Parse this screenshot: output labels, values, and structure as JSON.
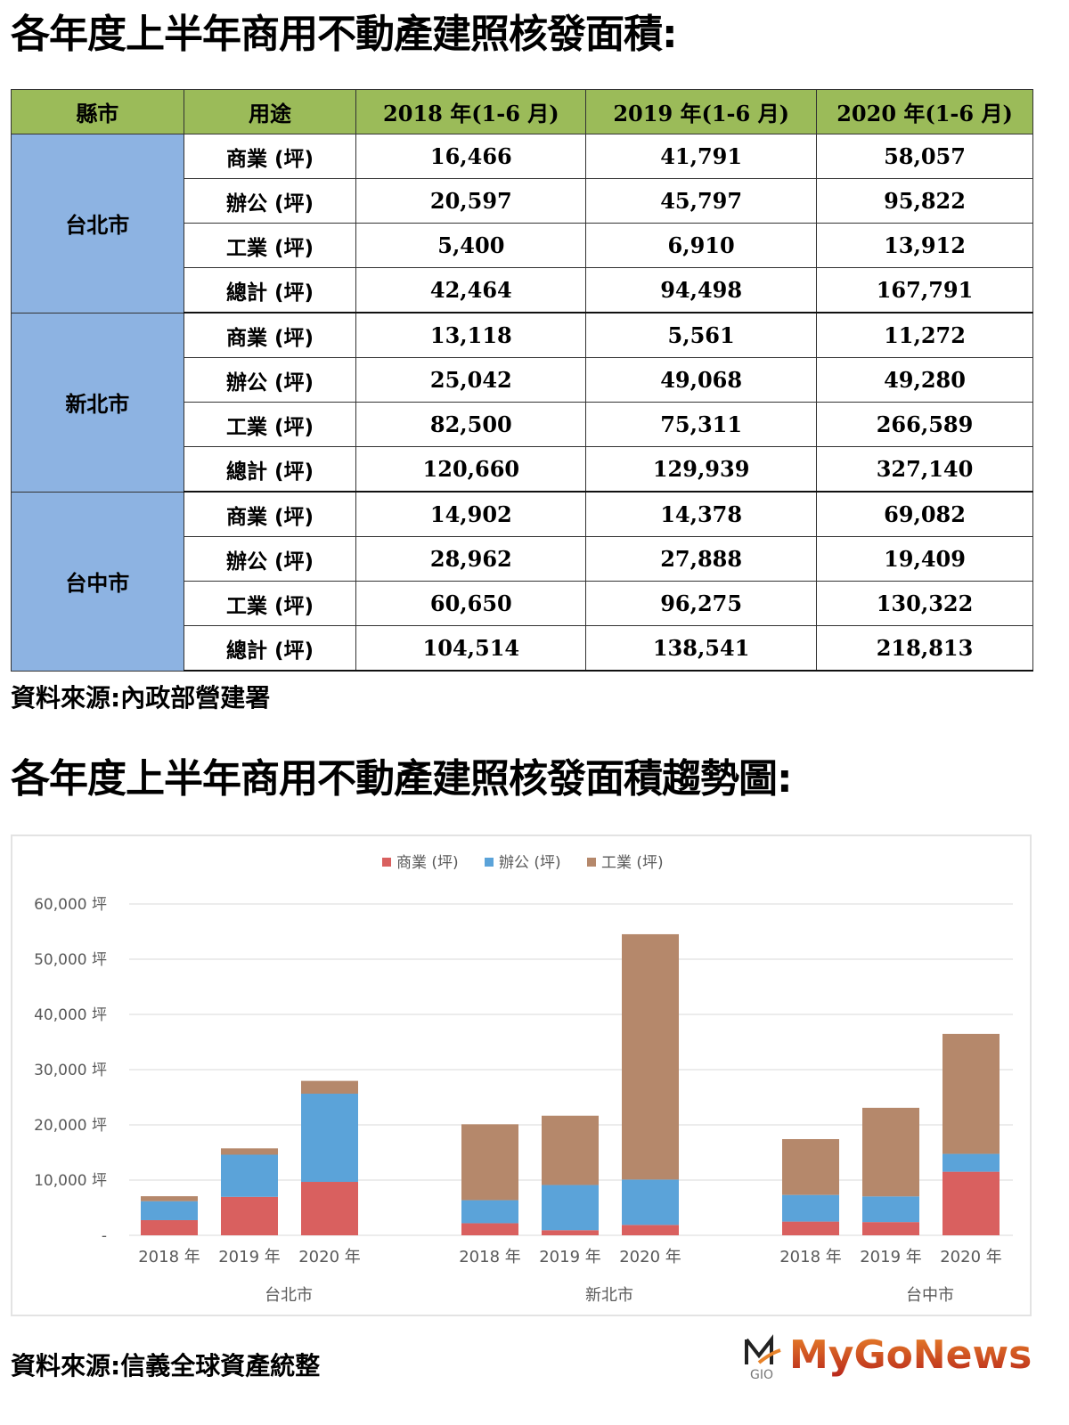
{
  "title": "各年度上半年商用不動產建照核發面積:",
  "table": {
    "headers": [
      "縣市",
      "用途",
      "2018 年(1-6 月)",
      "2019 年(1-6 月)",
      "2020 年(1-6 月)"
    ],
    "groups": [
      {
        "city": "台北市",
        "rows": [
          {
            "use": "商業 (坪)",
            "values": [
              "16,466",
              "41,791",
              "58,057"
            ]
          },
          {
            "use": "辦公 (坪)",
            "values": [
              "20,597",
              "45,797",
              "95,822"
            ]
          },
          {
            "use": "工業 (坪)",
            "values": [
              "5,400",
              "6,910",
              "13,912"
            ]
          },
          {
            "use": "總計 (坪)",
            "values": [
              "42,464",
              "94,498",
              "167,791"
            ]
          }
        ]
      },
      {
        "city": "新北市",
        "rows": [
          {
            "use": "商業 (坪)",
            "values": [
              "13,118",
              "5,561",
              "11,272"
            ]
          },
          {
            "use": "辦公 (坪)",
            "values": [
              "25,042",
              "49,068",
              "49,280"
            ]
          },
          {
            "use": "工業 (坪)",
            "values": [
              "82,500",
              "75,311",
              "266,589"
            ]
          },
          {
            "use": "總計 (坪)",
            "values": [
              "120,660",
              "129,939",
              "327,140"
            ]
          }
        ]
      },
      {
        "city": "台中市",
        "rows": [
          {
            "use": "商業 (坪)",
            "values": [
              "14,902",
              "14,378",
              "69,082"
            ]
          },
          {
            "use": "辦公 (坪)",
            "values": [
              "28,962",
              "27,888",
              "19,409"
            ]
          },
          {
            "use": "工業 (坪)",
            "values": [
              "60,650",
              "96,275",
              "130,322"
            ]
          },
          {
            "use": "總計 (坪)",
            "values": [
              "104,514",
              "138,541",
              "218,813"
            ]
          }
        ]
      }
    ]
  },
  "source1": "資料來源:內政部營建署",
  "chart_title": "各年度上半年商用不動產建照核發面積趨勢圖:",
  "chart_data": {
    "type": "bar",
    "stacked": true,
    "groups": [
      "台北市",
      "新北市",
      "台中市"
    ],
    "categories": [
      "2018 年",
      "2019 年",
      "2020 年"
    ],
    "series": [
      {
        "name": "商業 (坪)",
        "color": "#d9605f",
        "values": [
          [
            2744,
            6965,
            9676
          ],
          [
            2186,
            927,
            1879
          ],
          [
            2484,
            2396,
            11514
          ]
        ]
      },
      {
        "name": "辦公 (坪)",
        "color": "#5ba3d9",
        "values": [
          [
            3433,
            7633,
            15970
          ],
          [
            4174,
            8178,
            8213
          ],
          [
            4827,
            4648,
            3235
          ]
        ]
      },
      {
        "name": "工業 (坪)",
        "color": "#b5886b",
        "values": [
          [
            900,
            1152,
            2319
          ],
          [
            13750,
            12552,
            44432
          ],
          [
            10108,
            16046,
            21720
          ]
        ]
      }
    ],
    "yticks": [
      "-",
      "10,000 坪",
      "20,000 坪",
      "30,000 坪",
      "40,000 坪",
      "50,000 坪",
      "60,000 坪"
    ],
    "ylim": [
      0,
      60000
    ],
    "grid": true,
    "legend": "top-center"
  },
  "source2": "資料來源:信義全球資產統整",
  "logo": {
    "text": "MyGoNews",
    "mark": "GIO"
  }
}
